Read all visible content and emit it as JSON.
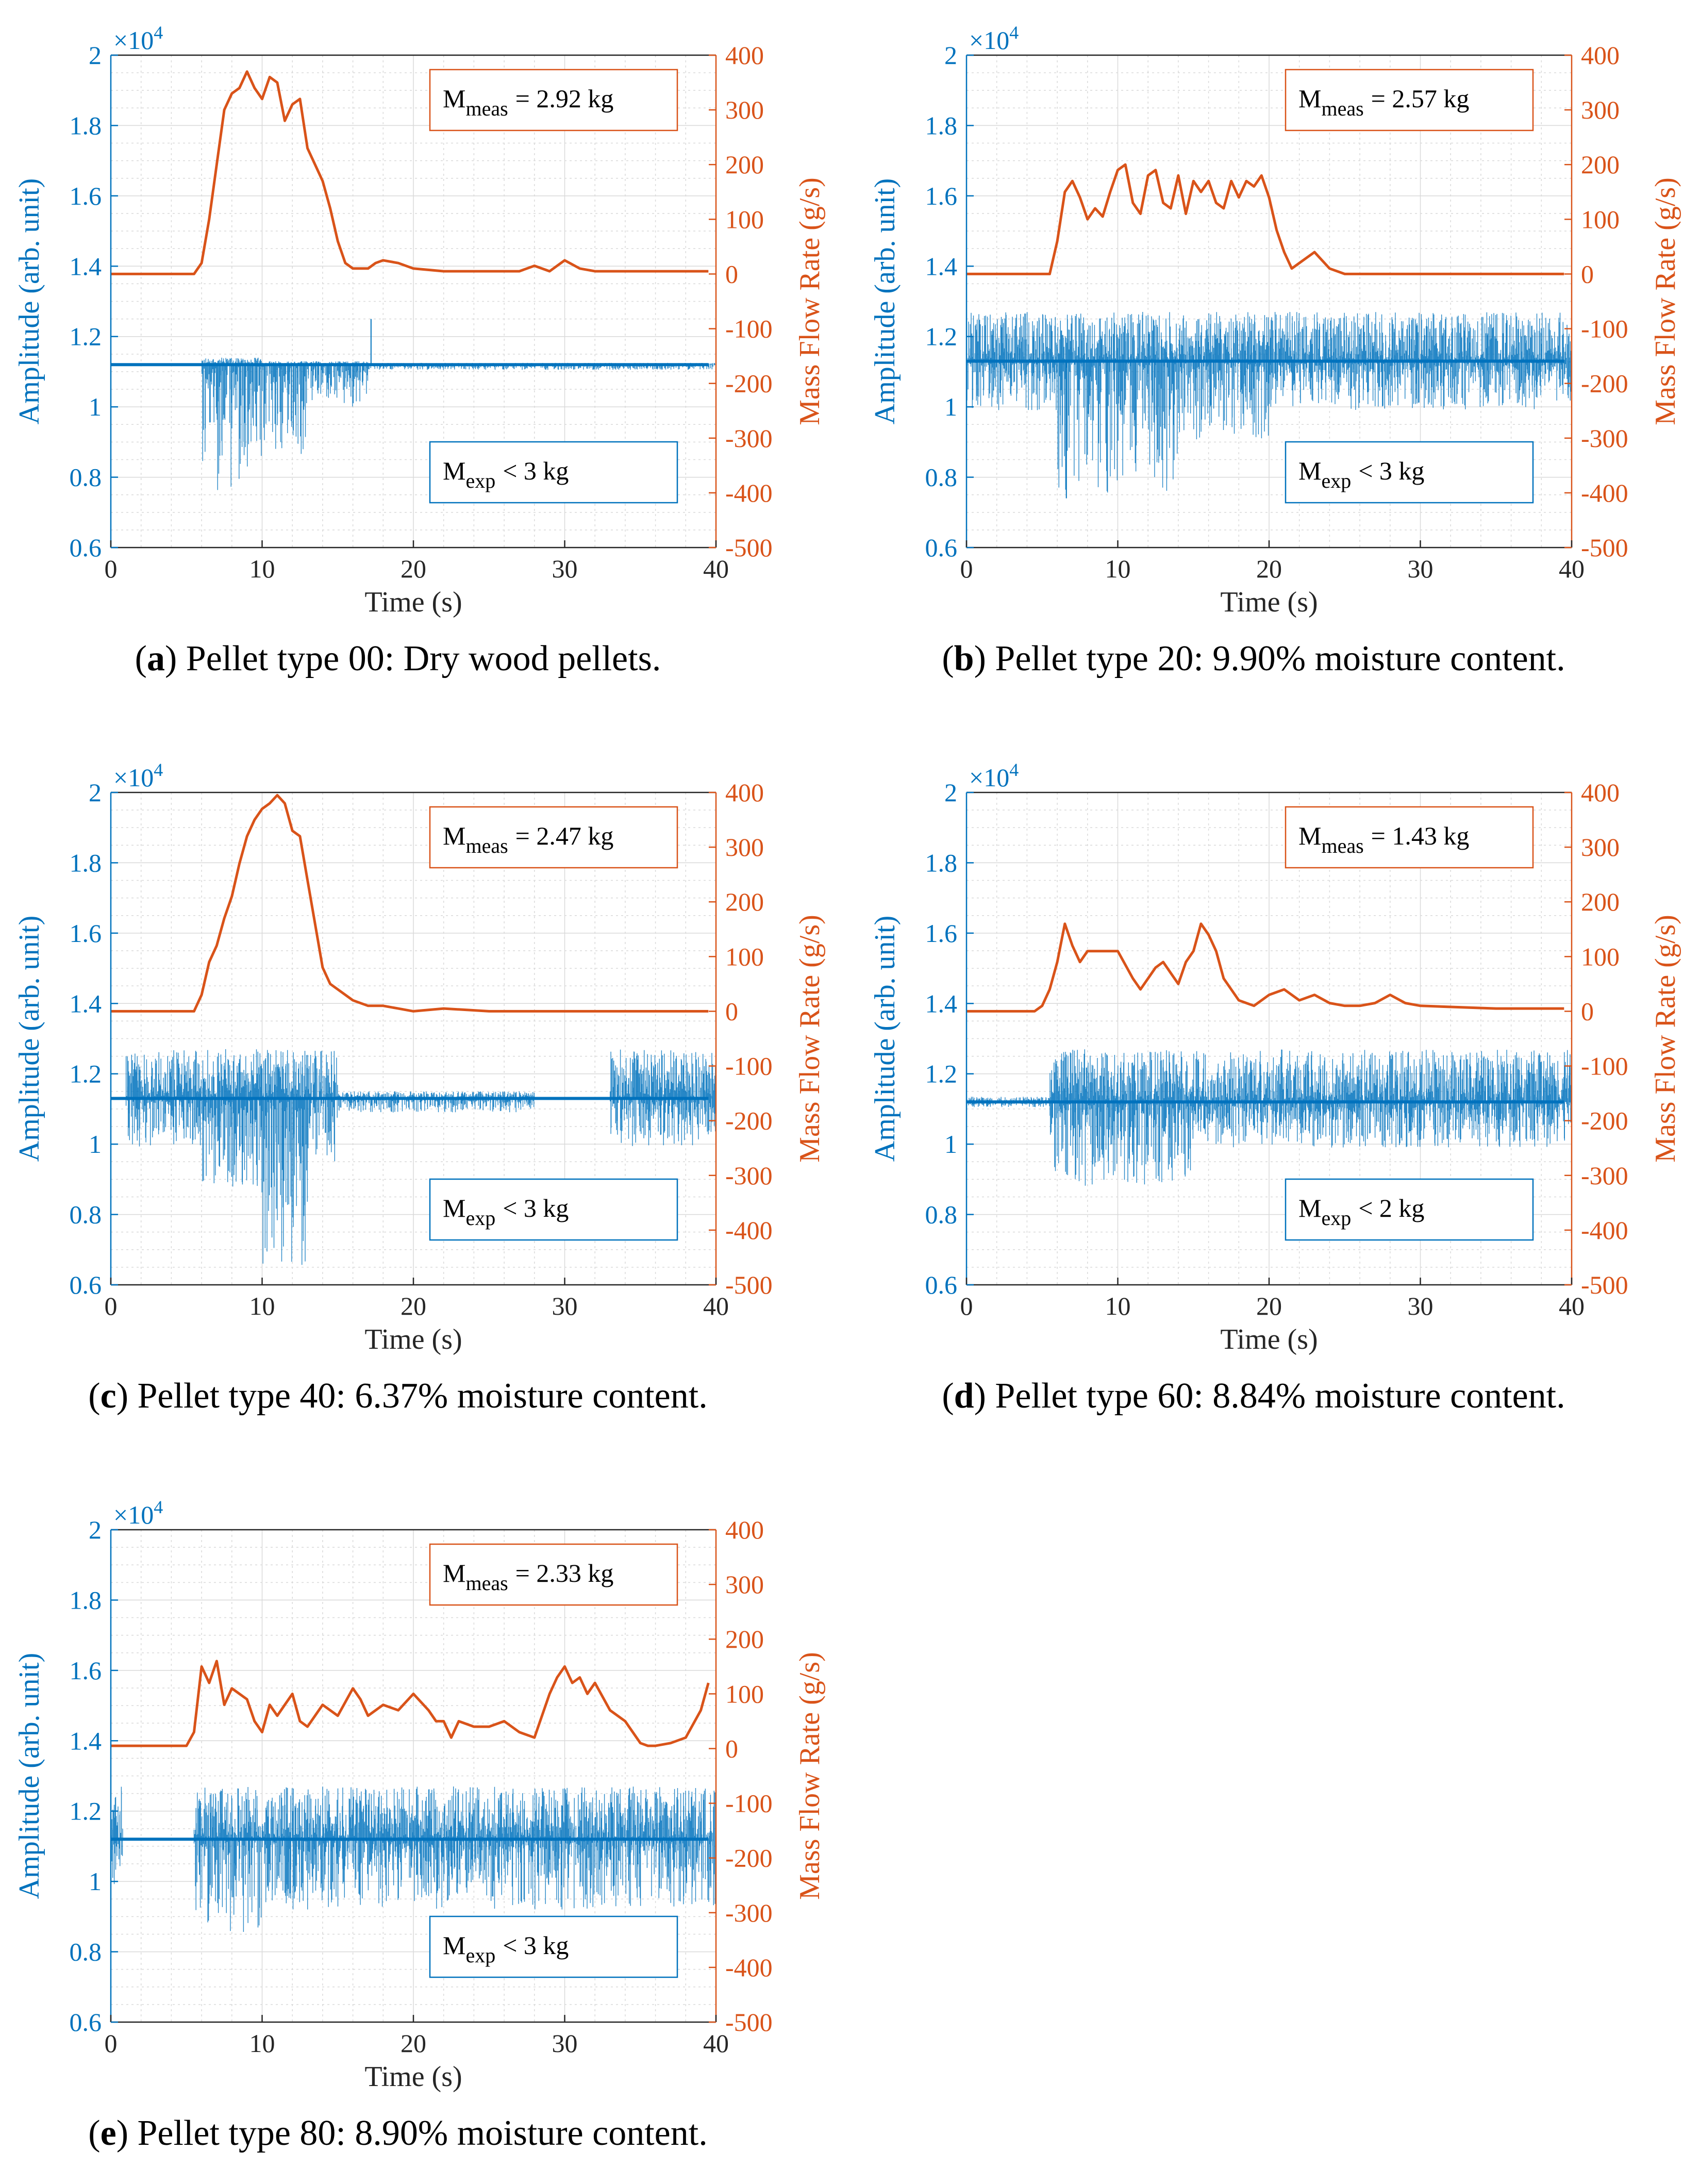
{
  "colors": {
    "amplitude": "#0072BD",
    "mass_flow": "#D95319",
    "grid": "#d9d9d9",
    "axis": "#262626"
  },
  "chart_data": [
    {
      "panel": "a",
      "caption_rest": ") Pellet type 00: Dry wood pellets.",
      "type": "line",
      "title": "",
      "xlabel": "Time (s)",
      "ylabel_left": "Amplitude (arb. unit)",
      "ylabel_right": "Mass Flow Rate (g/s)",
      "exponent_prefix": "×10",
      "exponent_power": "4",
      "xlim": [
        0,
        40
      ],
      "ylim_left": [
        0.6,
        2.0
      ],
      "ylim_right": [
        -500,
        400
      ],
      "xticks": [
        0,
        10,
        20,
        30,
        40
      ],
      "yticks_left": [
        0.6,
        0.8,
        1,
        1.2,
        1.4,
        1.6,
        1.8,
        2
      ],
      "yticks_right": [
        -500,
        -400,
        -300,
        -200,
        -100,
        0,
        100,
        200,
        300,
        400
      ],
      "meas_label": "M",
      "meas_sub": "meas",
      "meas_value": "= 2.92 kg",
      "exp_label": "M",
      "exp_sub": "exp",
      "exp_value": "< 3 kg",
      "mass_flow": {
        "x": [
          0,
          5.5,
          6,
          6.5,
          7,
          7.5,
          8,
          8.5,
          9,
          9.5,
          10,
          10.5,
          11,
          11.5,
          12,
          12.5,
          13,
          13.5,
          14,
          14.5,
          15,
          15.5,
          16,
          16.5,
          17,
          17.5,
          18,
          19,
          20,
          22,
          25,
          27,
          28,
          29,
          30,
          31,
          32,
          35,
          38,
          39.5
        ],
        "y": [
          0,
          0,
          20,
          100,
          200,
          300,
          330,
          340,
          370,
          340,
          320,
          360,
          350,
          280,
          310,
          320,
          230,
          200,
          170,
          120,
          60,
          20,
          10,
          10,
          10,
          20,
          25,
          20,
          10,
          5,
          5,
          5,
          15,
          5,
          25,
          10,
          5,
          5,
          5,
          5
        ]
      },
      "amplitude": {
        "baseline": 1.12,
        "segments": [
          {
            "x0": 6,
            "x1": 10,
            "up": 1.14,
            "down": 0.76
          },
          {
            "x0": 10,
            "x1": 13,
            "up": 1.13,
            "down": 0.86
          },
          {
            "x0": 13,
            "x1": 17,
            "up": 1.13,
            "down": 1.0
          },
          {
            "x0": 17,
            "x1": 40,
            "up": 1.125,
            "down": 1.105
          }
        ],
        "spikes": [
          {
            "x": 17.2,
            "y": 1.25
          }
        ]
      }
    },
    {
      "panel": "b",
      "caption_rest": ") Pellet type 20: 9.90% moisture content.",
      "type": "line",
      "title": "",
      "xlabel": "Time (s)",
      "ylabel_left": "Amplitude (arb. unit)",
      "ylabel_right": "Mass Flow Rate (g/s)",
      "exponent_prefix": "×10",
      "exponent_power": "4",
      "xlim": [
        0,
        40
      ],
      "ylim_left": [
        0.6,
        2.0
      ],
      "ylim_right": [
        -500,
        400
      ],
      "xticks": [
        0,
        10,
        20,
        30,
        40
      ],
      "yticks_left": [
        0.6,
        0.8,
        1,
        1.2,
        1.4,
        1.6,
        1.8,
        2
      ],
      "yticks_right": [
        -500,
        -400,
        -300,
        -200,
        -100,
        0,
        100,
        200,
        300,
        400
      ],
      "meas_label": "M",
      "meas_sub": "meas",
      "meas_value": "= 2.57 kg",
      "exp_label": "M",
      "exp_sub": "exp",
      "exp_value": "< 3 kg",
      "mass_flow": {
        "x": [
          0,
          5.5,
          6,
          6.5,
          7,
          7.5,
          8,
          8.5,
          9,
          9.5,
          10,
          10.5,
          11,
          11.5,
          12,
          12.5,
          13,
          13.5,
          14,
          14.5,
          15,
          15.5,
          16,
          16.5,
          17,
          17.5,
          18,
          18.5,
          19,
          19.5,
          20,
          20.5,
          21,
          21.5,
          22,
          23,
          24,
          25,
          30,
          35,
          39.5
        ],
        "y": [
          0,
          0,
          60,
          150,
          170,
          140,
          100,
          120,
          105,
          150,
          190,
          200,
          130,
          110,
          180,
          190,
          130,
          120,
          180,
          110,
          170,
          150,
          170,
          130,
          120,
          170,
          140,
          170,
          160,
          180,
          140,
          80,
          40,
          10,
          20,
          40,
          10,
          0,
          0,
          0,
          0
        ]
      },
      "amplitude": {
        "baseline": 1.13,
        "segments": [
          {
            "x0": 0,
            "x1": 6,
            "up": 1.27,
            "down": 0.99
          },
          {
            "x0": 6,
            "x1": 14,
            "up": 1.27,
            "down": 0.75
          },
          {
            "x0": 14,
            "x1": 20,
            "up": 1.27,
            "down": 0.9
          },
          {
            "x0": 20,
            "x1": 40,
            "up": 1.27,
            "down": 0.99
          }
        ],
        "spikes": [
          {
            "x": 6.6,
            "y": 0.74
          }
        ]
      }
    },
    {
      "panel": "c",
      "caption_rest": ") Pellet type 40: 6.37% moisture content.",
      "type": "line",
      "title": "",
      "xlabel": "Time (s)",
      "ylabel_left": "Amplitude (arb. unit)",
      "ylabel_right": "Mass Flow Rate (g/s)",
      "exponent_prefix": "×10",
      "exponent_power": "4",
      "xlim": [
        0,
        40
      ],
      "ylim_left": [
        0.6,
        2.0
      ],
      "ylim_right": [
        -500,
        400
      ],
      "xticks": [
        0,
        10,
        20,
        30,
        40
      ],
      "yticks_left": [
        0.6,
        0.8,
        1,
        1.2,
        1.4,
        1.6,
        1.8,
        2
      ],
      "yticks_right": [
        -500,
        -400,
        -300,
        -200,
        -100,
        0,
        100,
        200,
        300,
        400
      ],
      "meas_label": "M",
      "meas_sub": "meas",
      "meas_value": "= 2.47 kg",
      "exp_label": "M",
      "exp_sub": "exp",
      "exp_value": "< 3 kg",
      "mass_flow": {
        "x": [
          0,
          5.5,
          6,
          6.5,
          7,
          7.5,
          8,
          8.5,
          9,
          9.5,
          10,
          10.5,
          11,
          11.5,
          12,
          12.5,
          13,
          13.5,
          14,
          14.5,
          15,
          16,
          17,
          18,
          19,
          20,
          22,
          25,
          30,
          35,
          39.5
        ],
        "y": [
          0,
          0,
          30,
          90,
          120,
          170,
          210,
          270,
          320,
          350,
          370,
          380,
          395,
          380,
          330,
          320,
          240,
          160,
          80,
          50,
          40,
          20,
          10,
          10,
          5,
          0,
          5,
          0,
          0,
          0,
          0
        ]
      },
      "amplitude": {
        "baseline": 1.13,
        "segments": [
          {
            "x0": 1,
            "x1": 6,
            "up": 1.27,
            "down": 0.99
          },
          {
            "x0": 6,
            "x1": 10,
            "up": 1.27,
            "down": 0.86
          },
          {
            "x0": 10,
            "x1": 13,
            "up": 1.27,
            "down": 0.65
          },
          {
            "x0": 13,
            "x1": 15,
            "up": 1.27,
            "down": 0.95
          },
          {
            "x0": 15,
            "x1": 28,
            "up": 1.15,
            "down": 1.09
          },
          {
            "x0": 33,
            "x1": 40,
            "up": 1.27,
            "down": 0.99
          }
        ],
        "spikes": []
      }
    },
    {
      "panel": "d",
      "caption_rest": ") Pellet type 60: 8.84% moisture content.",
      "type": "line",
      "title": "",
      "xlabel": "Time (s)",
      "ylabel_left": "Amplitude (arb. unit)",
      "ylabel_right": "Mass Flow Rate (g/s)",
      "exponent_prefix": "×10",
      "exponent_power": "4",
      "xlim": [
        0,
        40
      ],
      "ylim_left": [
        0.6,
        2.0
      ],
      "ylim_right": [
        -500,
        400
      ],
      "xticks": [
        0,
        10,
        20,
        30,
        40
      ],
      "yticks_left": [
        0.6,
        0.8,
        1,
        1.2,
        1.4,
        1.6,
        1.8,
        2
      ],
      "yticks_right": [
        -500,
        -400,
        -300,
        -200,
        -100,
        0,
        100,
        200,
        300,
        400
      ],
      "meas_label": "M",
      "meas_sub": "meas",
      "meas_value": "= 1.43 kg",
      "exp_label": "M",
      "exp_sub": "exp",
      "exp_value": "< 2 kg",
      "mass_flow": {
        "x": [
          0,
          4.5,
          5,
          5.5,
          6,
          6.5,
          7,
          7.5,
          8,
          8.5,
          9,
          10,
          11,
          11.5,
          12,
          12.5,
          13,
          13.5,
          14,
          14.5,
          15,
          15.5,
          16,
          16.5,
          17,
          17.5,
          18,
          19,
          20,
          21,
          22,
          23,
          24,
          25,
          26,
          27,
          28,
          29,
          30,
          35,
          39.5
        ],
        "y": [
          0,
          0,
          10,
          40,
          90,
          160,
          120,
          90,
          110,
          110,
          110,
          110,
          60,
          40,
          60,
          80,
          90,
          70,
          50,
          90,
          110,
          160,
          140,
          110,
          60,
          40,
          20,
          10,
          30,
          40,
          20,
          30,
          15,
          10,
          10,
          15,
          30,
          15,
          10,
          5,
          5
        ]
      },
      "amplitude": {
        "baseline": 1.12,
        "segments": [
          {
            "x0": 0,
            "x1": 5.5,
            "up": 1.135,
            "down": 1.105
          },
          {
            "x0": 5.5,
            "x1": 15,
            "up": 1.27,
            "down": 0.88
          },
          {
            "x0": 15,
            "x1": 40,
            "up": 1.27,
            "down": 0.99
          }
        ],
        "spikes": []
      }
    },
    {
      "panel": "e",
      "caption_rest": ") Pellet type 80: 8.90% moisture content.",
      "type": "line",
      "title": "",
      "xlabel": "Time (s)",
      "ylabel_left": "Amplitude (arb. unit)",
      "ylabel_right": "Mass Flow Rate (g/s)",
      "exponent_prefix": "×10",
      "exponent_power": "4",
      "xlim": [
        0,
        40
      ],
      "ylim_left": [
        0.6,
        2.0
      ],
      "ylim_right": [
        -500,
        400
      ],
      "xticks": [
        0,
        10,
        20,
        30,
        40
      ],
      "yticks_left": [
        0.6,
        0.8,
        1,
        1.2,
        1.4,
        1.6,
        1.8,
        2
      ],
      "yticks_right": [
        -500,
        -400,
        -300,
        -200,
        -100,
        0,
        100,
        200,
        300,
        400
      ],
      "meas_label": "M",
      "meas_sub": "meas",
      "meas_value": "= 2.33 kg",
      "exp_label": "M",
      "exp_sub": "exp",
      "exp_value": "< 3 kg",
      "mass_flow": {
        "x": [
          0,
          5,
          5.5,
          6,
          6.5,
          7,
          7.5,
          8,
          8.5,
          9,
          9.5,
          10,
          10.5,
          11,
          11.5,
          12,
          12.5,
          13,
          13.5,
          14,
          15,
          16,
          16.5,
          17,
          18,
          19,
          20,
          21,
          21.5,
          22,
          22.5,
          23,
          24,
          25,
          26,
          27,
          28,
          29,
          29.5,
          30,
          30.5,
          31,
          31.5,
          32,
          33,
          34,
          35,
          35.5,
          36,
          37,
          38,
          39,
          39.5
        ],
        "y": [
          5,
          5,
          30,
          150,
          120,
          160,
          80,
          110,
          100,
          90,
          50,
          30,
          80,
          60,
          80,
          100,
          50,
          40,
          60,
          80,
          60,
          110,
          90,
          60,
          80,
          70,
          100,
          70,
          50,
          50,
          20,
          50,
          40,
          40,
          50,
          30,
          20,
          100,
          130,
          150,
          120,
          130,
          100,
          120,
          70,
          50,
          10,
          5,
          5,
          10,
          20,
          70,
          120
        ]
      },
      "amplitude": {
        "baseline": 1.12,
        "segments": [
          {
            "x0": 0,
            "x1": 0.8,
            "up": 1.27,
            "down": 0.99
          },
          {
            "x0": 5.5,
            "x1": 10,
            "up": 1.27,
            "down": 0.85
          },
          {
            "x0": 10,
            "x1": 40,
            "up": 1.27,
            "down": 0.92
          }
        ],
        "spikes": []
      }
    }
  ]
}
